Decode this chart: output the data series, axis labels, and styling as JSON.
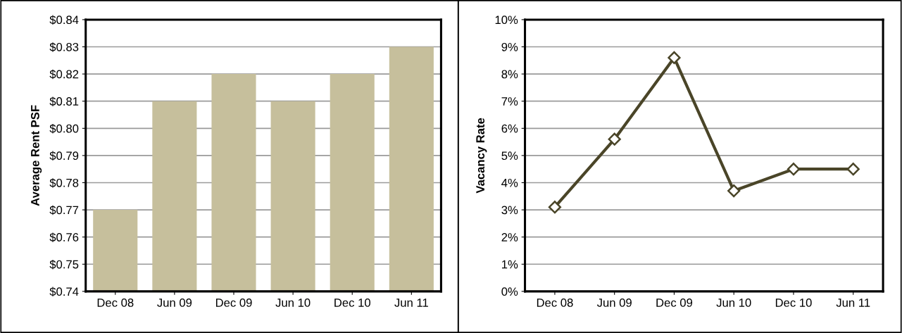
{
  "chart_data": [
    {
      "type": "bar",
      "ylabel": "Average Rent PSF",
      "categories": [
        "Dec 08",
        "Jun 09",
        "Dec 09",
        "Jun 10",
        "Dec 10",
        "Jun 11"
      ],
      "values": [
        0.77,
        0.81,
        0.82,
        0.81,
        0.82,
        0.83
      ],
      "color": "#c6bf9c",
      "ylim": [
        0.74,
        0.84
      ],
      "yticks": [
        {
          "value": 0.74,
          "label": "$0.74"
        },
        {
          "value": 0.75,
          "label": "$0.75"
        },
        {
          "value": 0.76,
          "label": "$0.76"
        },
        {
          "value": 0.77,
          "label": "$0.77"
        },
        {
          "value": 0.78,
          "label": "$0.78"
        },
        {
          "value": 0.79,
          "label": "$0.79"
        },
        {
          "value": 0.8,
          "label": "$0.80"
        },
        {
          "value": 0.81,
          "label": "$0.81"
        },
        {
          "value": 0.82,
          "label": "$0.82"
        },
        {
          "value": 0.83,
          "label": "$0.83"
        },
        {
          "value": 0.84,
          "label": "$0.84"
        }
      ],
      "grid": "y"
    },
    {
      "type": "line",
      "ylabel": "Vacancy Rate",
      "categories": [
        "Dec 08",
        "Jun 09",
        "Dec 09",
        "Jun 10",
        "Dec 10",
        "Jun 11"
      ],
      "values": [
        3.1,
        5.6,
        8.6,
        3.7,
        4.5,
        4.5
      ],
      "color": "#4a4528",
      "marker": "diamond",
      "line_style": "solid",
      "ylim": [
        0,
        10
      ],
      "yticks": [
        {
          "value": 0,
          "label": "0%"
        },
        {
          "value": 1,
          "label": "1%"
        },
        {
          "value": 2,
          "label": "2%"
        },
        {
          "value": 3,
          "label": "3%"
        },
        {
          "value": 4,
          "label": "4%"
        },
        {
          "value": 5,
          "label": "5%"
        },
        {
          "value": 6,
          "label": "6%"
        },
        {
          "value": 7,
          "label": "7%"
        },
        {
          "value": 8,
          "label": "8%"
        },
        {
          "value": 9,
          "label": "9%"
        },
        {
          "value": 10,
          "label": "10%"
        }
      ],
      "grid": "y"
    }
  ]
}
